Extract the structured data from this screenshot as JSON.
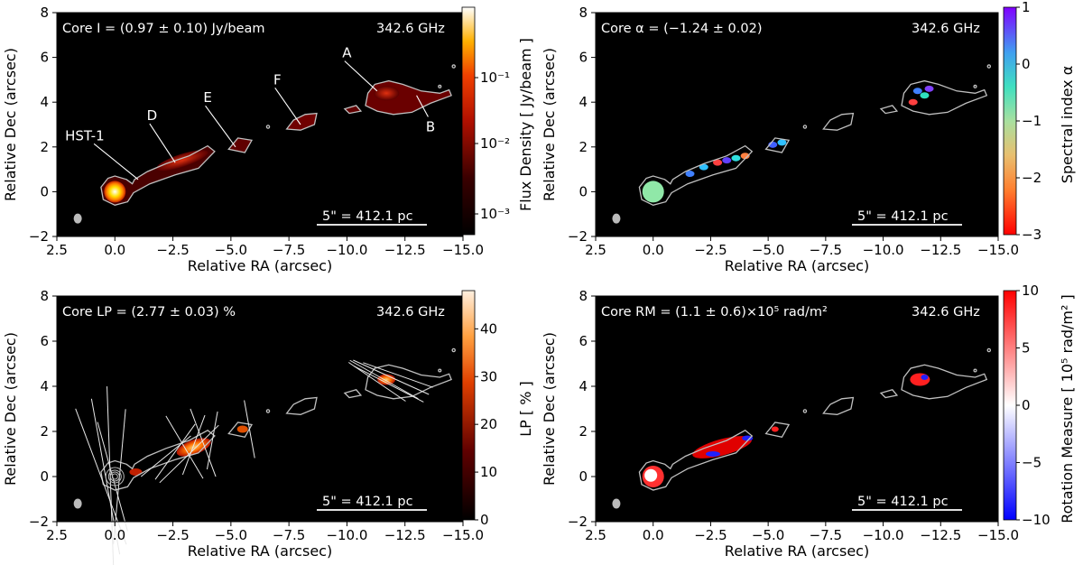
{
  "chart_data": [
    {
      "type": "image",
      "id": "flux",
      "xlabel": "Relative RA (arcsec)",
      "ylabel": "Relative Dec (arcsec)",
      "xlim": [
        2.5,
        -15.0
      ],
      "ylim": [
        -2,
        8
      ],
      "xticks": [
        "2.5",
        "0.0",
        "−2.5",
        "−5.0",
        "−7.5",
        "−10.0",
        "−12.5",
        "−15.0"
      ],
      "yticks": [
        "−2",
        "0",
        "2",
        "4",
        "6",
        "8"
      ],
      "core_text": "Core I = (0.97 ± 0.10) Jy/beam",
      "freq_text": "342.6 GHz",
      "scalebar_text": "5\" = 412.1 pc",
      "colorbar_label": "Flux Density [ Jy/beam ]",
      "colorbar_ticks": [
        "10⁻¹",
        "10⁻²",
        "10⁻³"
      ],
      "colorbar_scale": "log",
      "features": [
        {
          "label": "HST-1",
          "x": 1.3,
          "y": 2.3
        },
        {
          "label": "D",
          "x": -1.6,
          "y": 3.2
        },
        {
          "label": "E",
          "x": -4.0,
          "y": 4.0
        },
        {
          "label": "F",
          "x": -7.0,
          "y": 4.8
        },
        {
          "label": "A",
          "x": -10.0,
          "y": 6.0
        },
        {
          "label": "B",
          "x": -13.6,
          "y": 2.7
        }
      ]
    },
    {
      "type": "image",
      "id": "alpha",
      "xlabel": "Relative RA (arcsec)",
      "ylabel": "Relative Dec (arcsec)",
      "xlim": [
        2.5,
        -15.0
      ],
      "ylim": [
        -2,
        8
      ],
      "xticks": [
        "2.5",
        "0.0",
        "−2.5",
        "−5.0",
        "−7.5",
        "−10.0",
        "−12.5",
        "−15.0"
      ],
      "yticks": [
        "−2",
        "0",
        "2",
        "4",
        "6",
        "8"
      ],
      "core_text": "Core α = (−1.24 ± 0.02)",
      "freq_text": "342.6 GHz",
      "scalebar_text": "5\" = 412.1 pc",
      "colorbar_label": "Spectral index α",
      "colorbar_ticks": [
        "1",
        "0",
        "−1",
        "−2",
        "−3"
      ],
      "colorbar_range": [
        -3,
        1
      ]
    },
    {
      "type": "image",
      "id": "lp",
      "xlabel": "Relative RA (arcsec)",
      "ylabel": "Relative Dec (arcsec)",
      "xlim": [
        2.5,
        -15.0
      ],
      "ylim": [
        -2,
        8
      ],
      "xticks": [
        "2.5",
        "0.0",
        "−2.5",
        "−5.0",
        "−7.5",
        "−10.0",
        "−12.5",
        "−15.0"
      ],
      "yticks": [
        "−2",
        "0",
        "2",
        "4",
        "6",
        "8"
      ],
      "core_text": "Core LP = (2.77 ± 0.03) %",
      "freq_text": "342.6 GHz",
      "scalebar_text": "5\" = 412.1 pc",
      "colorbar_label": "LP [ % ]",
      "colorbar_ticks": [
        "40",
        "30",
        "20",
        "10",
        "0"
      ],
      "colorbar_range": [
        0,
        48
      ]
    },
    {
      "type": "image",
      "id": "rm",
      "xlabel": "Relative RA (arcsec)",
      "ylabel": "Relative Dec (arcsec)",
      "xlim": [
        2.5,
        -15.0
      ],
      "ylim": [
        -2,
        8
      ],
      "xticks": [
        "2.5",
        "0.0",
        "−2.5",
        "−5.0",
        "−7.5",
        "−10.0",
        "−12.5",
        "−15.0"
      ],
      "yticks": [
        "−2",
        "0",
        "2",
        "4",
        "6",
        "8"
      ],
      "core_text": "Core RM = (1.1 ± 0.6)×10⁵ rad/m²",
      "freq_text": "342.6 GHz",
      "scalebar_text": "5\" = 412.1 pc",
      "colorbar_label": "Rotation Measure [ 10⁵ rad/m² ]",
      "colorbar_ticks": [
        "10",
        "5",
        "0",
        "−5",
        "−10"
      ],
      "colorbar_range": [
        -10,
        10
      ]
    }
  ]
}
